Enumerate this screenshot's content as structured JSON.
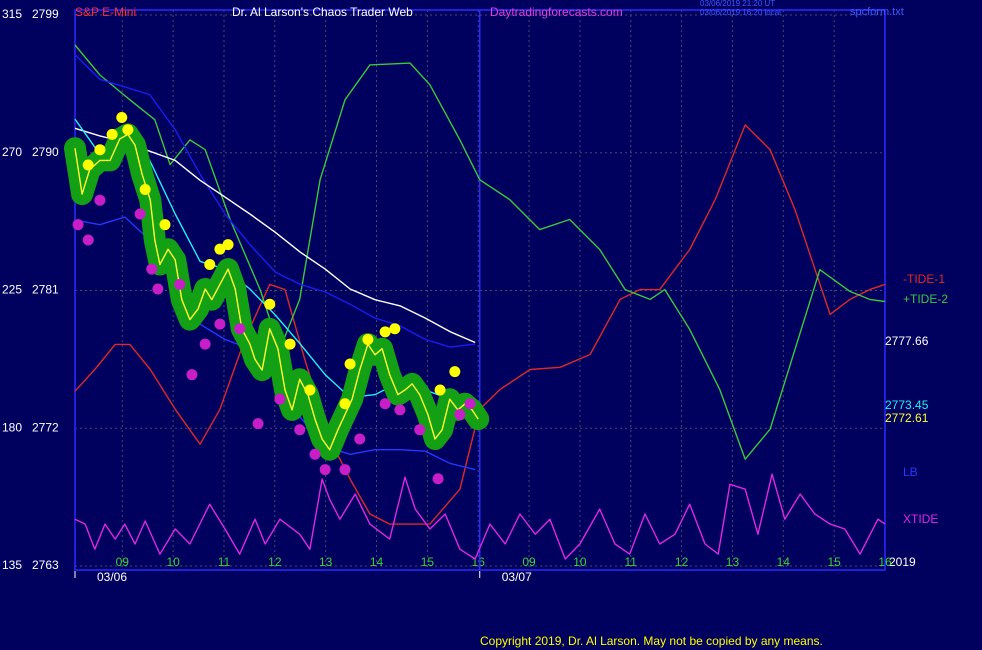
{
  "chart_data": {
    "type": "line",
    "title": "Dr. Al Larson's Chaos Trader Web",
    "symbol": "S&P E-Mini",
    "site": "Daytradingforecasts.com",
    "timestamps": [
      "03/06/2019 21:20 UT",
      "03/06/2019 16:20 local"
    ],
    "file": "spcform.txt",
    "year": "2019",
    "copyright": "Copyright 2019, Dr. Al Larson. May not be copied by any means.",
    "background": "#00005e",
    "grid": true,
    "xlim": [
      -0.93,
      15.0
    ],
    "xticks": [
      {
        "value": 0,
        "label": "09"
      },
      {
        "value": 1,
        "label": "10"
      },
      {
        "value": 2,
        "label": "11"
      },
      {
        "value": 3,
        "label": "12"
      },
      {
        "value": 4,
        "label": "13"
      },
      {
        "value": 5,
        "label": "14"
      },
      {
        "value": 6,
        "label": "15"
      },
      {
        "value": 7,
        "label": "16"
      },
      {
        "value": 8,
        "label": "09"
      },
      {
        "value": 9,
        "label": "10"
      },
      {
        "value": 10,
        "label": "11"
      },
      {
        "value": 11,
        "label": "12"
      },
      {
        "value": 12,
        "label": "13"
      },
      {
        "value": 13,
        "label": "14"
      },
      {
        "value": 14,
        "label": "15"
      },
      {
        "value": 15,
        "label": "16"
      }
    ],
    "day_ticks": [
      {
        "value": -0.93,
        "label": "03/06"
      },
      {
        "value": 7.03,
        "label": "03/07"
      }
    ],
    "ylim": [
      2763,
      2799
    ],
    "yticks": [
      2763,
      2772,
      2781,
      2790,
      2799
    ],
    "y2lim": [
      135,
      315
    ],
    "y2ticks": [
      135,
      180,
      225,
      270,
      315
    ],
    "series": [
      {
        "name": "-TIDE-1",
        "color": "#e02828",
        "axis": "y2",
        "x": [
          -0.93,
          -0.54,
          -0.14,
          0.15,
          0.55,
          1.04,
          1.53,
          1.92,
          2.41,
          2.9,
          3.2,
          3.59,
          4.08,
          4.48,
          4.87,
          5.26,
          6.05,
          6.64,
          7.03,
          7.43,
          8.02,
          8.61,
          9.2,
          9.79,
          10.18,
          10.57,
          11.16,
          11.66,
          12.25,
          12.74,
          13.23,
          13.92,
          14.31,
          14.7,
          15.0
        ],
        "values": [
          192.1,
          199.2,
          207.4,
          207.4,
          199.2,
          186.2,
          174.8,
          186.2,
          209.0,
          227.0,
          225.3,
          202.5,
          176.4,
          163.4,
          152.0,
          148.7,
          148.7,
          160.1,
          186.2,
          192.7,
          199.2,
          199.9,
          204.1,
          222.1,
          225.3,
          225.3,
          238.4,
          254.7,
          279.1,
          271.0,
          251.4,
          217.2,
          222.1,
          225.3,
          227.0
        ]
      },
      {
        "name": "+TIDE-2",
        "color": "#3cc83c",
        "axis": "y2",
        "x": [
          -0.93,
          -0.44,
          0.15,
          0.64,
          0.94,
          1.33,
          1.63,
          2.12,
          2.71,
          3.1,
          3.49,
          3.89,
          4.38,
          4.87,
          5.66,
          6.05,
          6.64,
          7.03,
          7.62,
          8.21,
          8.8,
          9.39,
          9.89,
          10.38,
          10.67,
          11.16,
          11.75,
          12.25,
          12.74,
          13.23,
          13.72,
          14.31,
          14.7,
          15.0
        ],
        "values": [
          305.2,
          295.4,
          287.3,
          280.8,
          266.1,
          274.2,
          271.0,
          248.2,
          225.3,
          205.8,
          222.1,
          261.2,
          287.3,
          298.7,
          299.3,
          292.2,
          274.2,
          261.2,
          254.7,
          244.9,
          248.2,
          238.4,
          225.3,
          222.1,
          225.3,
          212.3,
          192.7,
          169.9,
          179.7,
          205.8,
          231.8,
          224.7,
          222.1,
          221.4
        ]
      },
      {
        "name": "XTIDE",
        "color": "#e028e0",
        "axis": "y2",
        "x": [
          -0.93,
          -0.73,
          -0.54,
          -0.34,
          -0.14,
          0.05,
          0.25,
          0.45,
          0.74,
          1.04,
          1.33,
          1.72,
          2.02,
          2.31,
          2.61,
          2.81,
          3.1,
          3.49,
          3.69,
          3.93,
          4.08,
          4.28,
          4.58,
          4.87,
          5.26,
          5.56,
          5.76,
          6.05,
          6.35,
          6.64,
          6.94,
          7.23,
          7.53,
          7.82,
          8.12,
          8.41,
          8.71,
          9.0,
          9.39,
          9.69,
          9.98,
          10.28,
          10.57,
          10.87,
          11.16,
          11.46,
          11.72,
          11.95,
          12.25,
          12.5,
          12.78,
          13.03,
          13.33,
          13.62,
          13.92,
          14.21,
          14.51,
          14.86,
          15.0
        ],
        "values": [
          150.3,
          148.7,
          140.5,
          148.7,
          143.8,
          148.7,
          142.2,
          149.7,
          138.9,
          147.1,
          142.2,
          155.2,
          147.1,
          138.9,
          150.3,
          142.2,
          150.3,
          145.4,
          140.5,
          163.4,
          156.8,
          150.3,
          158.5,
          148.7,
          143.8,
          164.0,
          153.6,
          147.1,
          152.0,
          140.5,
          137.3,
          148.7,
          142.2,
          152.0,
          145.4,
          150.3,
          137.3,
          142.2,
          153.6,
          142.2,
          138.9,
          152.0,
          142.2,
          145.4,
          155.2,
          142.2,
          138.9,
          161.7,
          160.1,
          145.4,
          165.0,
          150.3,
          158.5,
          152.0,
          148.7,
          147.1,
          138.9,
          150.3,
          148.7
        ]
      },
      {
        "color": "#1c1cf0",
        "x": [
          -0.93,
          -0.44,
          0.05,
          0.54,
          1.04,
          1.53,
          2.02,
          2.51,
          3.01,
          3.5,
          3.99,
          4.48,
          4.97,
          5.46,
          5.96,
          6.45,
          6.94
        ],
        "values": [
          2796.4,
          2794.8,
          2794.3,
          2793.8,
          2791.5,
          2788.6,
          2786.0,
          2784.0,
          2782.2,
          2781.4,
          2780.9,
          2780.1,
          2779.2,
          2778.7,
          2777.8,
          2777.3,
          2777.5
        ]
      },
      {
        "name": "LB",
        "color": "#2438ff",
        "x": [
          -0.93,
          -0.44,
          0.05,
          0.54,
          1.04,
          1.53,
          2.02,
          2.51,
          3.01,
          3.5,
          3.99,
          4.48,
          4.97,
          5.46,
          5.96,
          6.45,
          6.94
        ],
        "values": [
          2785.6,
          2785.3,
          2785.8,
          2784.3,
          2781.4,
          2778.8,
          2777.8,
          2777.2,
          2775.2,
          2772.7,
          2770.8,
          2770.3,
          2770.6,
          2770.6,
          2770.5,
          2769.7,
          2769.3
        ]
      },
      {
        "color": "#ffffff",
        "last": 2777.66,
        "x": [
          -0.93,
          -0.44,
          0.05,
          0.54,
          1.04,
          1.53,
          2.02,
          2.51,
          3.01,
          3.5,
          3.99,
          4.48,
          4.97,
          5.46,
          5.96,
          6.45,
          6.94
        ],
        "values": [
          2791.6,
          2791.1,
          2790.7,
          2790.1,
          2789.5,
          2788.2,
          2787.1,
          2786.0,
          2784.8,
          2783.5,
          2782.4,
          2781.1,
          2780.4,
          2780.0,
          2779.2,
          2778.3,
          2777.6
        ]
      },
      {
        "color": "#22f0f0",
        "last": 2773.45,
        "x": [
          -0.93,
          -0.44,
          0.05,
          0.54,
          1.04,
          1.53,
          2.02,
          2.51,
          3.01,
          3.5,
          3.99,
          4.48,
          4.97,
          5.46,
          5.96,
          6.45,
          6.94
        ],
        "values": [
          2792.2,
          2789.9,
          2790.1,
          2789.5,
          2786.0,
          2782.9,
          2782.4,
          2781.1,
          2779.4,
          2777.5,
          2775.5,
          2774.0,
          2774.2,
          2775.0,
          2774.5,
          2773.9,
          2773.6
        ]
      },
      {
        "color": "#ffff30",
        "halo_color": "#14a014",
        "last": 2772.61,
        "x": [
          -0.93,
          -0.79,
          -0.64,
          -0.44,
          -0.24,
          -0.05,
          0.11,
          0.25,
          0.39,
          0.55,
          0.64,
          0.74,
          0.9,
          1.04,
          1.17,
          1.33,
          1.49,
          1.63,
          1.76,
          1.92,
          2.08,
          2.22,
          2.35,
          2.51,
          2.61,
          2.75,
          2.9,
          3.06,
          3.2,
          3.34,
          3.49,
          3.65,
          3.79,
          3.93,
          4.08,
          4.24,
          4.38,
          4.52,
          4.67,
          4.83,
          4.97,
          5.11,
          5.26,
          5.42,
          5.56,
          5.7,
          5.85,
          6.01,
          6.15,
          6.29,
          6.44,
          6.6,
          6.74,
          6.88,
          7.0
        ],
        "values": [
          2790.3,
          2787.3,
          2788.9,
          2789.5,
          2789.5,
          2790.9,
          2791.2,
          2790.5,
          2788.6,
          2786.9,
          2784.3,
          2782.7,
          2783.7,
          2783.0,
          2780.4,
          2779.1,
          2779.8,
          2781.1,
          2780.4,
          2781.4,
          2782.4,
          2781.1,
          2778.5,
          2777.5,
          2776.5,
          2775.8,
          2778.5,
          2777.2,
          2774.5,
          2773.2,
          2775.2,
          2774.2,
          2772.6,
          2771.3,
          2770.6,
          2771.9,
          2772.9,
          2773.9,
          2775.8,
          2777.5,
          2776.8,
          2777.2,
          2775.5,
          2774.2,
          2774.5,
          2774.9,
          2774.2,
          2772.9,
          2771.3,
          2771.9,
          2773.9,
          2773.2,
          2773.6,
          2773.2,
          2772.6
        ]
      },
      {
        "type": "scatter",
        "color": "#ffff00",
        "x": [
          -0.67,
          -0.44,
          -0.2,
          -0.01,
          0.11,
          0.45,
          0.84,
          1.72,
          1.92,
          2.08,
          2.9,
          3.3,
          3.69,
          4.38,
          4.48,
          4.83,
          5.17,
          5.36,
          6.25,
          6.54
        ],
        "values": [
          2789.2,
          2790.2,
          2791.2,
          2792.3,
          2791.5,
          2787.6,
          2785.3,
          2782.7,
          2783.7,
          2784.0,
          2780.1,
          2777.5,
          2774.5,
          2773.6,
          2776.2,
          2777.8,
          2778.3,
          2778.5,
          2774.5,
          2775.7
        ]
      },
      {
        "type": "scatter",
        "color": "#c81ec8",
        "x": [
          -0.87,
          -0.67,
          -0.44,
          0.35,
          0.58,
          0.7,
          1.13,
          1.37,
          1.63,
          1.92,
          2.31,
          2.67,
          3.1,
          3.49,
          3.79,
          3.99,
          4.38,
          4.67,
          5.17,
          5.46,
          5.85,
          6.21,
          6.64,
          6.84
        ],
        "values": [
          2785.3,
          2784.3,
          2786.9,
          2786.0,
          2782.4,
          2781.1,
          2781.4,
          2775.5,
          2777.5,
          2778.8,
          2778.5,
          2772.3,
          2773.9,
          2771.9,
          2770.3,
          2769.3,
          2769.3,
          2771.3,
          2773.6,
          2773.2,
          2771.9,
          2768.7,
          2772.9,
          2773.6
        ]
      }
    ]
  }
}
